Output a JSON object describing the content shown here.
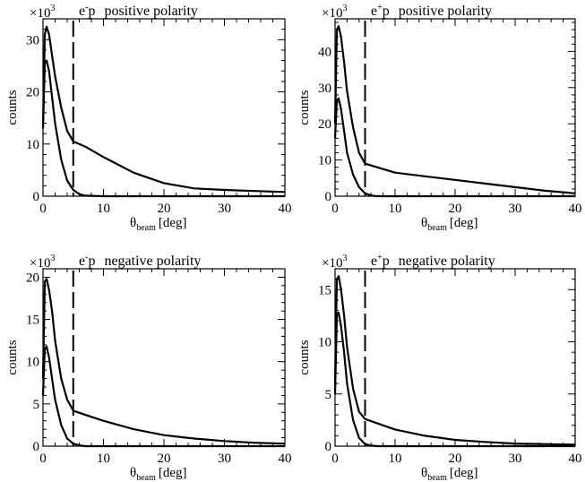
{
  "chart_data": [
    {
      "type": "line",
      "title": "e⁻p  positive polarity",
      "title_beam": "e",
      "title_charge": "-",
      "title_target": "p",
      "title_polarity": "positive polarity",
      "xlabel": "θ",
      "xlabel_sub": "beam",
      "xlabel_unit": "[deg]",
      "ylabel": "counts",
      "y_multiplier": "×10",
      "y_multiplier_exp": "3",
      "xlim": [
        0,
        40
      ],
      "ylim": [
        0,
        34
      ],
      "x_ticks": [
        0,
        10,
        20,
        30,
        40
      ],
      "y_ticks": [
        0,
        10,
        20,
        30
      ],
      "cut_x": 5,
      "series": [
        {
          "x": [
            0,
            0.3,
            0.6,
            1,
            1.5,
            2,
            3,
            4,
            5,
            7,
            10,
            15,
            20,
            25,
            30,
            35,
            40
          ],
          "y": [
            13,
            31,
            32.5,
            31,
            27,
            23,
            17,
            12.5,
            10.5,
            9.5,
            7.5,
            4.5,
            2.5,
            1.5,
            1.2,
            1.0,
            0.8
          ]
        },
        {
          "x": [
            0,
            0.3,
            0.6,
            1,
            1.5,
            2,
            3,
            4,
            5,
            6,
            7,
            10,
            40
          ],
          "y": [
            13,
            25.5,
            26,
            24,
            19,
            14,
            7,
            3,
            1.2,
            0.4,
            0.1,
            0,
            0
          ]
        }
      ]
    },
    {
      "type": "line",
      "title": "e⁺p  positive polarity",
      "title_beam": "e",
      "title_charge": "+",
      "title_target": "p",
      "title_polarity": "positive polarity",
      "xlabel": "θ",
      "xlabel_sub": "beam",
      "xlabel_unit": "[deg]",
      "ylabel": "counts",
      "y_multiplier": "×10",
      "y_multiplier_exp": "3",
      "xlim": [
        0,
        40
      ],
      "ylim": [
        0,
        49
      ],
      "x_ticks": [
        0,
        10,
        20,
        30,
        40
      ],
      "y_ticks": [
        0,
        10,
        20,
        30,
        40
      ],
      "cut_x": 5,
      "series": [
        {
          "x": [
            0,
            0.3,
            0.6,
            1,
            1.5,
            2,
            3,
            4,
            5,
            7,
            10,
            15,
            20,
            25,
            30,
            35,
            40
          ],
          "y": [
            20,
            46,
            47,
            44,
            37,
            29,
            19,
            12,
            9,
            8,
            6.5,
            5.5,
            4.5,
            3.5,
            2.5,
            1.5,
            0.8
          ]
        },
        {
          "x": [
            0,
            0.3,
            0.6,
            1,
            1.5,
            2,
            3,
            4,
            5,
            6,
            7,
            10,
            40
          ],
          "y": [
            16,
            26.5,
            27,
            24,
            18,
            12,
            6,
            2.5,
            0.8,
            0.2,
            0,
            0,
            0
          ]
        }
      ]
    },
    {
      "type": "line",
      "title": "e⁻p  negative polarity",
      "title_beam": "e",
      "title_charge": "-",
      "title_target": "p",
      "title_polarity": "negative polarity",
      "xlabel": "θ",
      "xlabel_sub": "beam",
      "xlabel_unit": "[deg]",
      "ylabel": "counts",
      "y_multiplier": "×10",
      "y_multiplier_exp": "3",
      "xlim": [
        0,
        40
      ],
      "ylim": [
        0,
        21
      ],
      "x_ticks": [
        0,
        10,
        20,
        30,
        40
      ],
      "y_ticks": [
        0,
        5,
        10,
        15,
        20
      ],
      "cut_x": 5,
      "series": [
        {
          "x": [
            0,
            0.3,
            0.6,
            1,
            1.5,
            2,
            3,
            4,
            5,
            7,
            10,
            15,
            20,
            25,
            30,
            35,
            40
          ],
          "y": [
            8,
            19.5,
            19.8,
            18.5,
            16,
            12.5,
            8,
            5.5,
            4.2,
            3.7,
            3.0,
            2.0,
            1.3,
            0.9,
            0.6,
            0.4,
            0.3
          ]
        },
        {
          "x": [
            0,
            0.3,
            0.6,
            1,
            1.5,
            2,
            3,
            4,
            5,
            6,
            7,
            10,
            40
          ],
          "y": [
            6,
            11.5,
            11.8,
            10.5,
            8,
            5.5,
            2.5,
            0.9,
            0.3,
            0.1,
            0,
            0,
            0
          ]
        }
      ]
    },
    {
      "type": "line",
      "title": "e⁺p  negative polarity",
      "title_beam": "e",
      "title_charge": "+",
      "title_target": "p",
      "title_polarity": "negative polarity",
      "xlabel": "θ",
      "xlabel_sub": "beam",
      "xlabel_unit": "[deg]",
      "ylabel": "counts",
      "y_multiplier": "×10",
      "y_multiplier_exp": "3",
      "xlim": [
        0,
        40
      ],
      "ylim": [
        0,
        17
      ],
      "x_ticks": [
        0,
        10,
        20,
        30,
        40
      ],
      "y_ticks": [
        0,
        5,
        10,
        15
      ],
      "cut_x": 5,
      "series": [
        {
          "x": [
            0,
            0.3,
            0.6,
            1,
            1.5,
            2,
            3,
            4,
            5,
            7,
            10,
            15,
            20,
            25,
            30,
            35,
            40
          ],
          "y": [
            6,
            16,
            16.3,
            15,
            12.5,
            9.5,
            5.5,
            3.3,
            2.6,
            2.2,
            1.6,
            1.0,
            0.6,
            0.4,
            0.25,
            0.2,
            0.15
          ]
        },
        {
          "x": [
            0,
            0.3,
            0.6,
            1,
            1.5,
            2,
            3,
            4,
            5,
            6,
            7,
            10,
            40
          ],
          "y": [
            5,
            12.5,
            12.8,
            11.5,
            9,
            6,
            2.5,
            0.8,
            0.2,
            0.05,
            0,
            0,
            0
          ]
        }
      ]
    }
  ]
}
